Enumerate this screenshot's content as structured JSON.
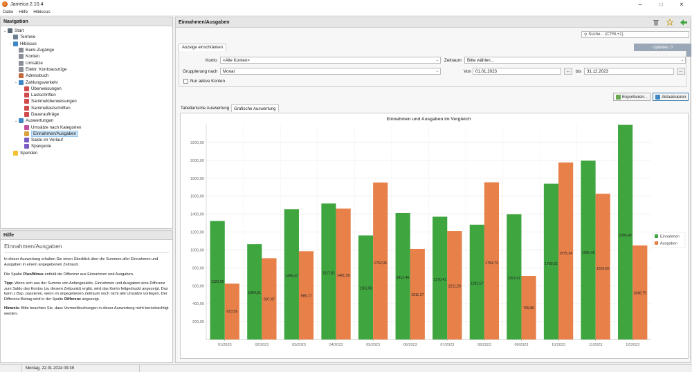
{
  "window": {
    "title": "Jameica 2.10.4",
    "minimize": "–",
    "maximize": "□",
    "close": "✕"
  },
  "menu": [
    "Datei",
    "Hilfe",
    "Hibiscus"
  ],
  "navigation": {
    "title": "Navigation",
    "items": [
      {
        "label": "Start",
        "icon": "computer-icon",
        "color": "#5b6b7a"
      },
      {
        "label": "Termine",
        "icon": "calendar-icon",
        "color": "#6d7f93"
      },
      {
        "label": "Hibiscus",
        "icon": "folder-icon",
        "color": "#3f88c5"
      },
      {
        "label": "Bank-Zugänge",
        "icon": "bank-icon",
        "color": "#8a8f96"
      },
      {
        "label": "Konten",
        "icon": "accounts-icon",
        "color": "#8a8f96"
      },
      {
        "label": "Umsätze",
        "icon": "transactions-icon",
        "color": "#8a8f96"
      },
      {
        "label": "Elektr. Kontoauszüge",
        "icon": "statement-icon",
        "color": "#8a8f96"
      },
      {
        "label": "Adressbuch",
        "icon": "addressbook-icon",
        "color": "#c46a3a"
      },
      {
        "label": "Zahlungsverkehr",
        "icon": "folder-icon",
        "color": "#3f88c5"
      },
      {
        "label": "Überweisungen",
        "icon": "transfer-icon",
        "color": "#d04b4b"
      },
      {
        "label": "Lastschriften",
        "icon": "debit-icon",
        "color": "#d04b4b"
      },
      {
        "label": "Sammelüberweisungen",
        "icon": "batch-transfer-icon",
        "color": "#d04b4b"
      },
      {
        "label": "Sammellastschriften",
        "icon": "batch-debit-icon",
        "color": "#d04b4b"
      },
      {
        "label": "Daueraufträge",
        "icon": "standing-order-icon",
        "color": "#d04b4b"
      },
      {
        "label": "Auswertungen",
        "icon": "folder-icon",
        "color": "#3f88c5"
      },
      {
        "label": "Umsätze nach Kategorien",
        "icon": "pie-chart-icon",
        "color": "#c0509d"
      },
      {
        "label": "Einnahmen/Ausgaben",
        "icon": "bar-chart-icon",
        "color": "#d9a441"
      },
      {
        "label": "Saldo im Verlauf",
        "icon": "line-chart-icon",
        "color": "#7a5cc4"
      },
      {
        "label": "Sparquote",
        "icon": "savings-icon",
        "color": "#7a5cc4"
      },
      {
        "label": "Spenden",
        "icon": "star-icon",
        "color": "#f2c230"
      }
    ]
  },
  "help": {
    "header": "Hilfe",
    "title": "Einnahmen/Ausgaben",
    "p1": "In dieser Auswertung erhalten Sie einen Überblick über die Summen aller Einnahmen und Ausgaben in einem angegebenen Zeitraum.",
    "p2_a": "Die Spalte ",
    "p2_b": "Plus/Minus",
    "p2_c": " enthält die Differenz aus Einnahmen und Ausgaben.",
    "p3_a": "Tipp:",
    "p3_b": " Wenn sich aus der Summe von Anfangssaldo, Einnahmen und Ausgaben eine Differenz zum Saldo des Kontos (zu diesem Zeitpunkt) ergibt, wird das Konto fettgedruckt angezeigt. Das kann z.Bsp. passieren, wenn im angegebenen Zeitraum noch nicht alle Umsätze vorliegen. Der Differenz-Betrag wird in der Spalte ",
    "p3_c": "Differenz",
    "p3_d": " angezeigt.",
    "p4_a": "Hinweis:",
    "p4_b": " Bitte beachten Sie, dass Vormerkbuchungen in dieser Auswertung nicht berücksichtigt werden."
  },
  "main": {
    "title": "Einnahmen/Ausgaben",
    "search_placeholder": "Suche...   (CTRL+1)",
    "updates": "Updates: 0",
    "filter_tab": "Anzeige einschränken",
    "konto_label": "Konto",
    "konto_value": "<Alle Konten>",
    "zeitraum_label": "Zeitraum",
    "zeitraum_value": "Bitte wählen...",
    "gruppierung_label": "Gruppierung nach",
    "gruppierung_value": "Monat",
    "von_label": "Von",
    "von_value": "01.01.2023",
    "bis_label": "bis",
    "bis_value": "31.12.2023",
    "dots": "...",
    "nur_aktive": "Nur aktive Konten",
    "export_label": "Exportieren...",
    "refresh_label": "Aktualisieren",
    "tab_table": "Tabellarische Auswertung",
    "tab_chart": "Grafische Auswertung"
  },
  "status": {
    "date": "Montag, 22.01.2024 09:39"
  },
  "chart_data": {
    "type": "bar",
    "title": "Einnahmen und Ausgaben im Vergleich",
    "categories": [
      "01/2023",
      "02/2023",
      "03/2023",
      "04/2023",
      "05/2023",
      "06/2023",
      "07/2023",
      "08/2023",
      "09/2023",
      "10/2023",
      "11/2023",
      "12/2023"
    ],
    "series": [
      {
        "name": "Einnahmen",
        "color": "#3fa53f",
        "values": [
          1322.0,
          1064.01,
          1455.42,
          1517.81,
          1161.58,
          1412.46,
          1370.41,
          1281.57,
          1397.01,
          1739.22,
          1995.46,
          2395.42
        ],
        "labels": [
          "1322,00",
          "1064,01",
          "1455,42",
          "1517,81",
          "1161,58",
          "1412,46",
          "1370,41",
          "1281,57",
          "1397,01",
          "1739,22",
          "1995,46",
          "2395,42"
        ]
      },
      {
        "name": "Ausgaben",
        "color": "#e8804a",
        "values": [
          623.59,
          907.47,
          985.17,
          1461.59,
          1752.05,
          1011.27,
          1211.2,
          1754.73,
          709.8,
          1975.34,
          1626.65,
          1049.75
        ],
        "labels": [
          "623,59",
          "907,47",
          "985,17",
          "1461,59",
          "1752,05",
          "1011,27",
          "1211,20",
          "1754,73",
          "709,80",
          "1975,34",
          "1626,65",
          "1049,75"
        ]
      }
    ],
    "yticks": [
      "200,00",
      "400,00",
      "600,00",
      "800,00",
      "1000,00",
      "1200,00",
      "1400,00",
      "1600,00",
      "1800,00",
      "2000,00",
      "2200,00"
    ],
    "ylim": [
      0,
      2400
    ],
    "legend_position": "right",
    "grid": true
  }
}
